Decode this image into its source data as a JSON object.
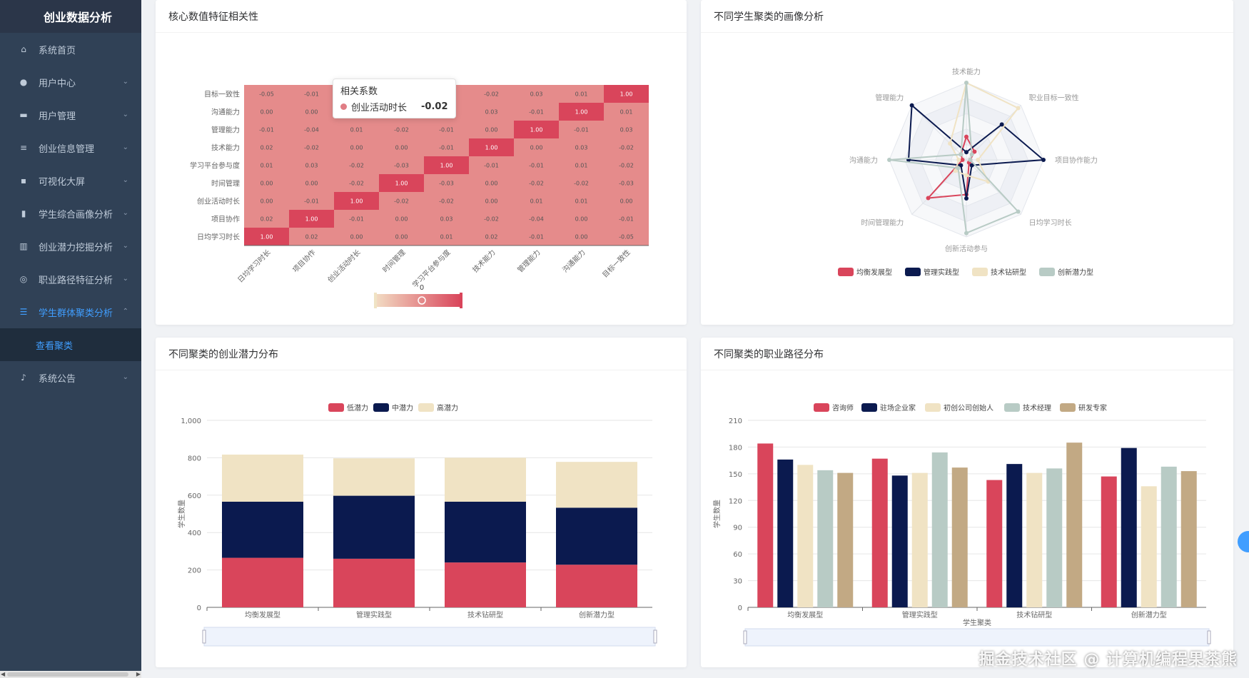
{
  "app": {
    "title": "创业数据分析"
  },
  "menu": [
    {
      "label": "系统首页",
      "icon": "home-icon",
      "glyph": "⌂",
      "chevron": false
    },
    {
      "label": "用户中心",
      "icon": "user-icon",
      "glyph": "●",
      "chevron": true
    },
    {
      "label": "用户管理",
      "icon": "monitor-icon",
      "glyph": "▬",
      "chevron": true
    },
    {
      "label": "创业信息管理",
      "icon": "sliders-icon",
      "glyph": "≡",
      "chevron": true
    },
    {
      "label": "可视化大屏",
      "icon": "display-icon",
      "glyph": "▪",
      "chevron": true
    },
    {
      "label": "学生综合画像分析",
      "icon": "chart-bar-icon",
      "glyph": "▮",
      "chevron": true
    },
    {
      "label": "创业潜力挖掘分析",
      "icon": "bar-chart-icon",
      "glyph": "▥",
      "chevron": true
    },
    {
      "label": "职业路径特征分析",
      "icon": "target-icon",
      "glyph": "◎",
      "chevron": true
    },
    {
      "label": "学生群体聚类分析",
      "icon": "list-icon",
      "glyph": "☰",
      "chevron": true,
      "active": true,
      "submenu": [
        "查看聚类"
      ]
    },
    {
      "label": "系统公告",
      "icon": "microphone-icon",
      "glyph": "♪",
      "chevron": true
    }
  ],
  "cards": {
    "heatmap_title": "核心数值特征相关性",
    "radar_title": "不同学生聚类的画像分析",
    "potential_title": "不同聚类的创业潜力分布",
    "career_title": "不同聚类的职业路径分布"
  },
  "tooltip": {
    "title": "相关系数",
    "series": "创业活动时长",
    "value": "-0.02"
  },
  "watermark": "掘金技术社区 @ 计算机编程果茶熊",
  "colors": {
    "red": "#d9455b",
    "navy": "#0b1a4f",
    "cream": "#f0e3c4",
    "sage": "#b8cbc5",
    "tan": "#c2a984"
  },
  "chart_data": [
    {
      "type": "heatmap",
      "title": "核心数值特征相关性",
      "x_labels": [
        "日均学习时长",
        "项目协作",
        "创业活动时长",
        "时间管理",
        "学习平台参与度",
        "技术能力",
        "管理能力",
        "沟通能力",
        "目标一致性"
      ],
      "y_labels": [
        "目标一致性",
        "沟通能力",
        "管理能力",
        "技术能力",
        "学习平台参与度",
        "时间管理",
        "创业活动时长",
        "项目协作",
        "日均学习时长"
      ],
      "matrix": [
        [
          "-0.05",
          "-0.01",
          "",
          "",
          "",
          "-0.02",
          "0.03",
          "0.01",
          "1.00"
        ],
        [
          "0.00",
          "0.00",
          "",
          "",
          "",
          "0.03",
          "-0.01",
          "1.00",
          "0.01"
        ],
        [
          "-0.01",
          "-0.04",
          "0.01",
          "-0.02",
          "-0.01",
          "0.00",
          "1.00",
          "-0.01",
          "0.03"
        ],
        [
          "0.02",
          "-0.02",
          "0.00",
          "0.00",
          "-0.01",
          "1.00",
          "0.00",
          "0.03",
          "-0.02"
        ],
        [
          "0.01",
          "0.03",
          "-0.02",
          "-0.03",
          "1.00",
          "-0.01",
          "-0.01",
          "0.01",
          "-0.02"
        ],
        [
          "0.00",
          "0.00",
          "-0.02",
          "1.00",
          "-0.03",
          "0.00",
          "-0.02",
          "-0.02",
          "-0.03"
        ],
        [
          "0.00",
          "-0.01",
          "1.00",
          "-0.02",
          "-0.02",
          "0.00",
          "0.01",
          "0.01",
          "0.00"
        ],
        [
          "0.02",
          "1.00",
          "-0.01",
          "0.00",
          "0.03",
          "-0.02",
          "-0.04",
          "0.00",
          "-0.01"
        ],
        [
          "1.00",
          "0.02",
          "0.00",
          "0.00",
          "0.01",
          "0.02",
          "-0.01",
          "0.00",
          "-0.05"
        ]
      ],
      "visual_map_label": "0"
    },
    {
      "type": "radar",
      "title": "不同学生聚类的画像分析",
      "indicators": [
        "技术能力",
        "职业目标一致性",
        "项目协作能力",
        "日均学习时长",
        "创新活动参与",
        "时间管理能力",
        "沟通能力",
        "管理能力"
      ],
      "max": 1,
      "series": [
        {
          "name": "均衡发展型",
          "color": "#d9455b",
          "values": [
            0.3,
            0.15,
            0.05,
            0.05,
            0.45,
            0.7,
            0.05,
            0.1
          ]
        },
        {
          "name": "管理实践型",
          "color": "#0b1a4f",
          "values": [
            0.1,
            0.65,
            1.0,
            0.1,
            0.5,
            0.1,
            0.75,
            1.0
          ]
        },
        {
          "name": "技术钻研型",
          "color": "#f0e3c4",
          "values": [
            1.0,
            0.95,
            0.15,
            0.4,
            0.2,
            0.2,
            0.1,
            0.3
          ]
        },
        {
          "name": "创新潜力型",
          "color": "#b8cbc5",
          "values": [
            1.0,
            0.1,
            0.05,
            0.95,
            0.95,
            0.15,
            1.0,
            0.1
          ]
        }
      ]
    },
    {
      "type": "bar",
      "stacked": true,
      "title": "不同聚类的创业潜力分布",
      "categories": [
        "均衡发展型",
        "管理实践型",
        "技术钻研型",
        "创新潜力型"
      ],
      "series": [
        {
          "name": "低潜力",
          "color": "#d9455b",
          "values": [
            265,
            260,
            240,
            228
          ]
        },
        {
          "name": "中潜力",
          "color": "#0b1a4f",
          "values": [
            300,
            337,
            325,
            305
          ]
        },
        {
          "name": "高潜力",
          "color": "#f0e3c4",
          "values": [
            252,
            200,
            235,
            245
          ]
        }
      ],
      "ylabel": "学生数量",
      "xlabel": "",
      "ylim": [
        0,
        1000
      ],
      "yticks": [
        "0",
        "200",
        "400",
        "600",
        "800",
        "1,000"
      ]
    },
    {
      "type": "bar",
      "title": "不同聚类的职业路径分布",
      "categories": [
        "均衡发展型",
        "管理实践型",
        "技术钻研型",
        "创新潜力型"
      ],
      "series": [
        {
          "name": "咨询师",
          "color": "#d9455b",
          "values": [
            184,
            167,
            143,
            147
          ]
        },
        {
          "name": "驻场企业家",
          "color": "#0b1a4f",
          "values": [
            166,
            148,
            161,
            179
          ]
        },
        {
          "name": "初创公司创始人",
          "color": "#f0e3c4",
          "values": [
            160,
            151,
            151,
            136
          ]
        },
        {
          "name": "技术经理",
          "color": "#b8cbc5",
          "values": [
            154,
            174,
            156,
            158
          ]
        },
        {
          "name": "研发专家",
          "color": "#c2a984",
          "values": [
            151,
            157,
            185,
            153
          ]
        }
      ],
      "ylabel": "学生数量",
      "xlabel": "学生聚类",
      "ylim": [
        0,
        210
      ],
      "yticks": [
        "0",
        "30",
        "60",
        "90",
        "120",
        "150",
        "180",
        "210"
      ]
    }
  ]
}
